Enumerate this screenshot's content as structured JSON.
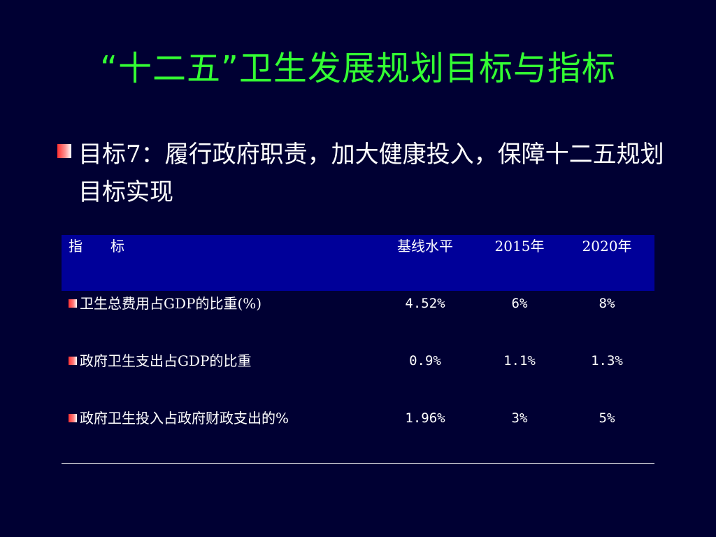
{
  "slide": {
    "title": "“十二五”卫生发展规划目标与指标",
    "bullet": "目标7：履行政府职责，加大健康投入，保障十二五规划目标实现"
  },
  "table": {
    "headers": {
      "indicator": "指　　标",
      "baseline": "基线水平",
      "y2015": "2015年",
      "y2020": "2020年"
    },
    "rows": [
      {
        "indicator": "卫生总费用占GDP的比重(%)",
        "baseline": "4.52%",
        "y2015": "6%",
        "y2020": "8%"
      },
      {
        "indicator": "政府卫生支出占GDP的比重",
        "baseline": "0.9%",
        "y2015": "1.1%",
        "y2020": "1.3%"
      },
      {
        "indicator": "政府卫生投入占政府财政支出的%",
        "baseline": "1.96%",
        "y2015": "3%",
        "y2020": "5%"
      }
    ]
  },
  "colors": {
    "background": "#000033",
    "title": "#33ff33",
    "table_header": "#000099",
    "bullet_marker": "#ff3030"
  }
}
